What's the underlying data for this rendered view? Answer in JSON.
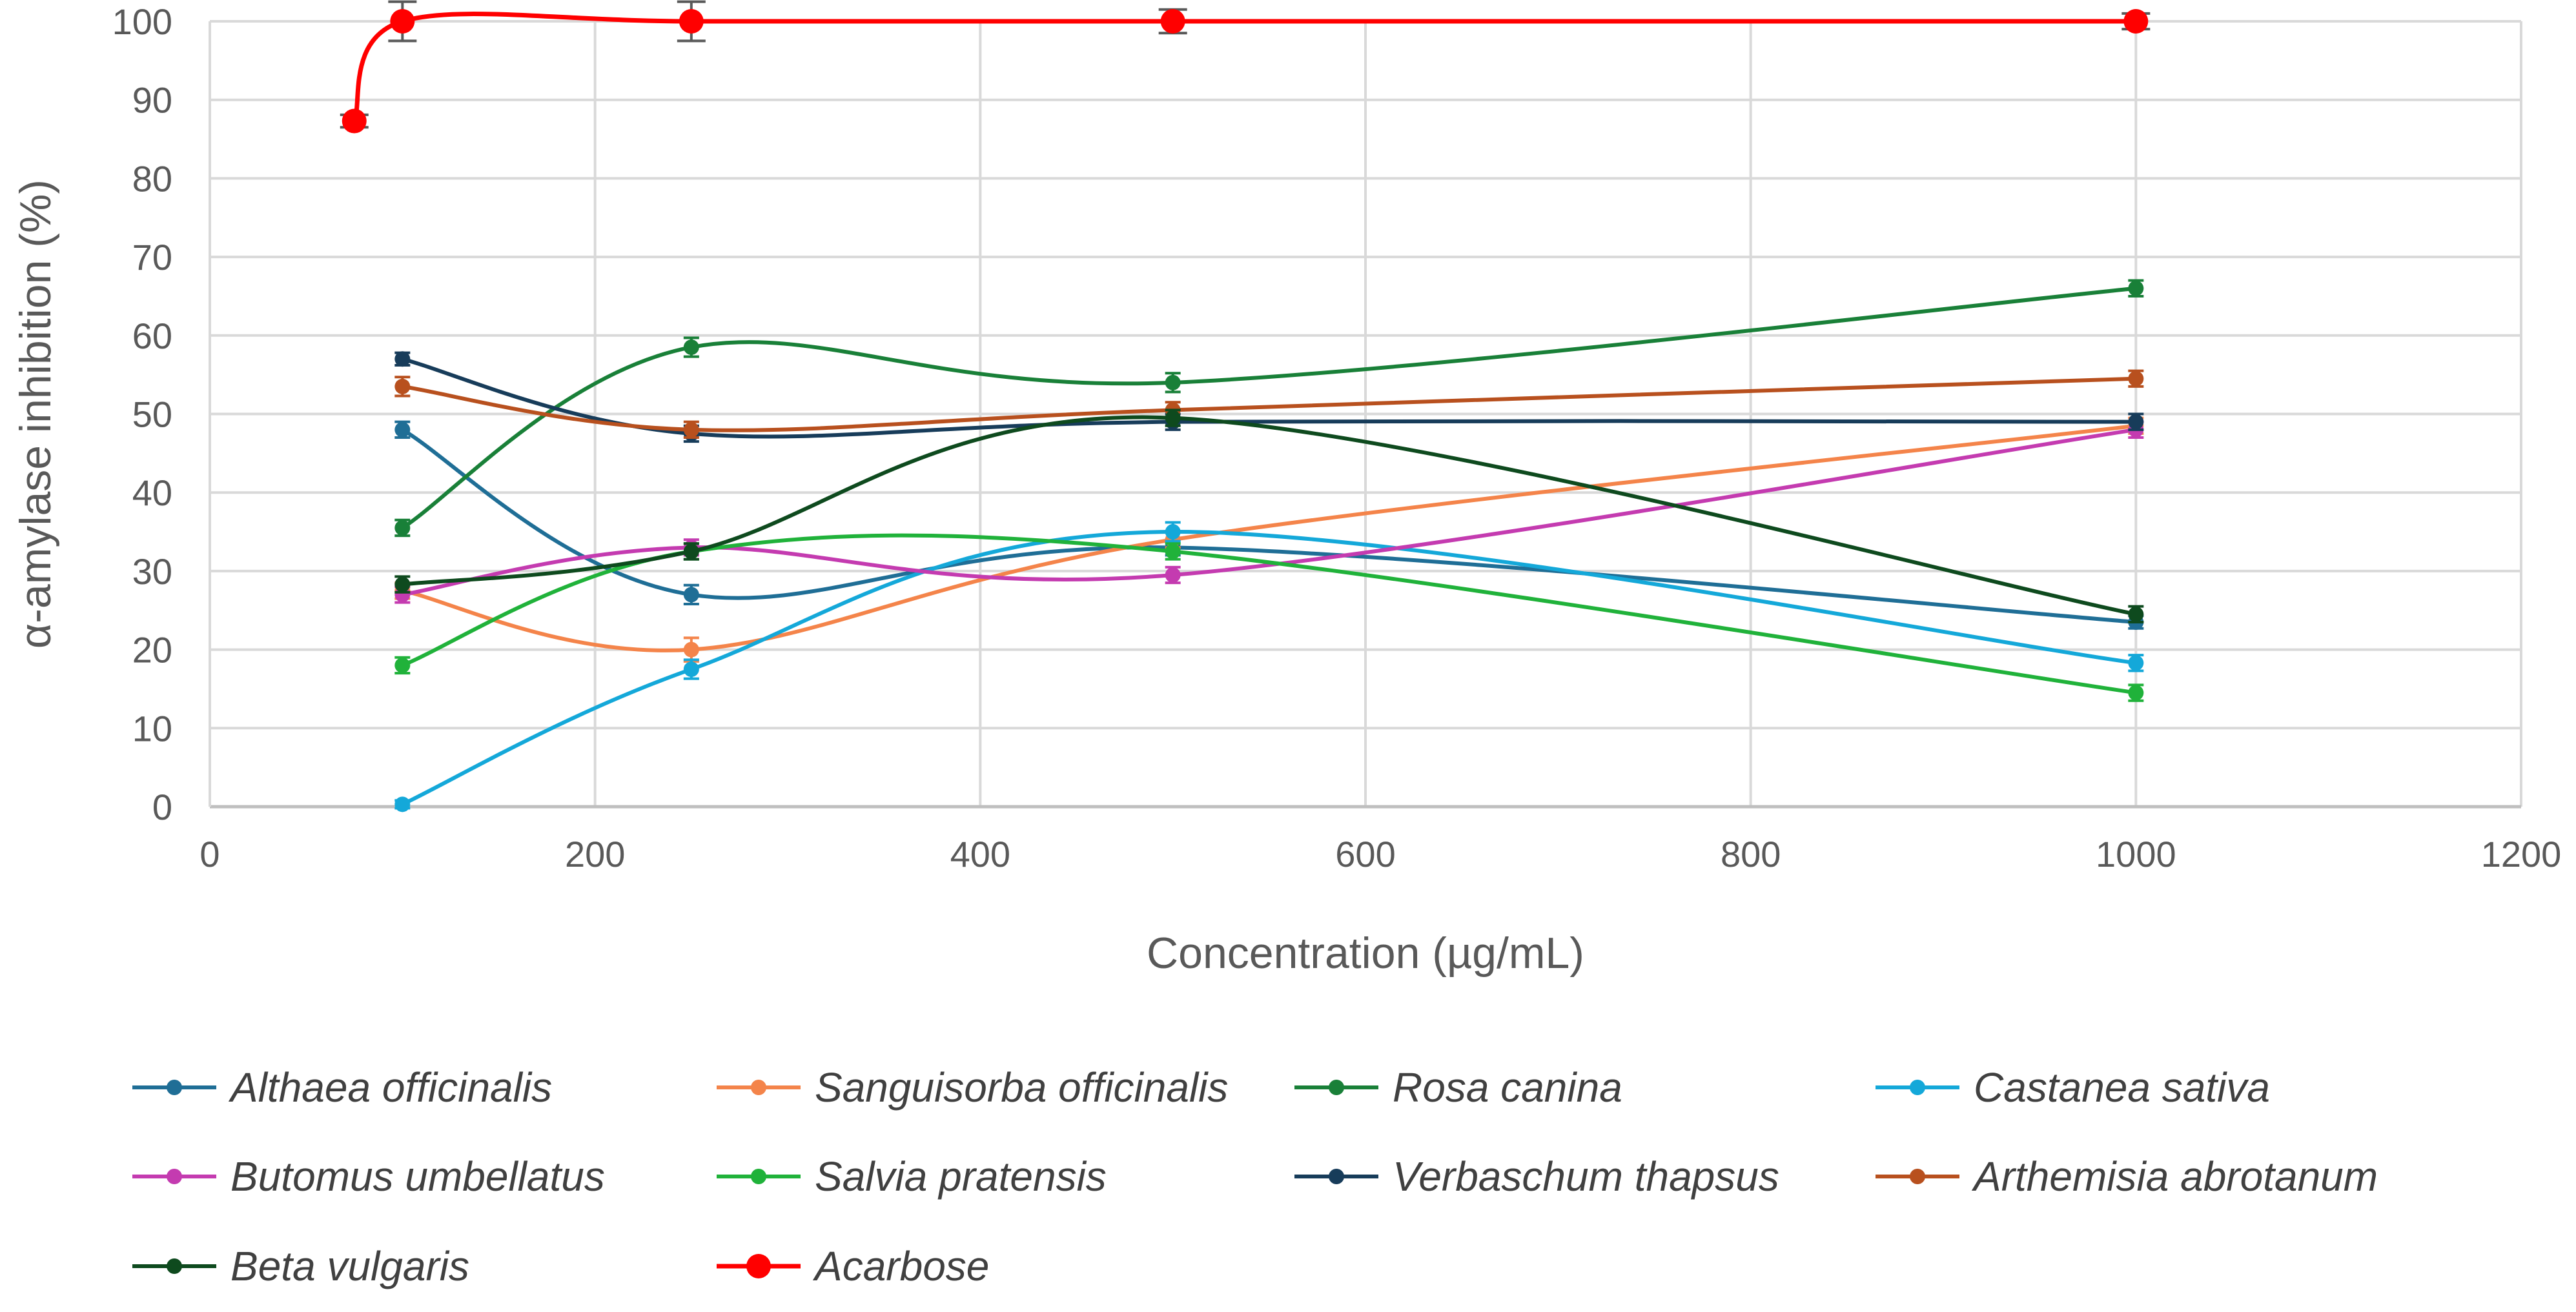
{
  "chart_data": {
    "type": "line",
    "title": "",
    "xlabel": "Concentration (µg/mL)",
    "ylabel": "α-amylase inhibition (%)",
    "xlim": [
      0,
      1200
    ],
    "ylim": [
      0,
      100
    ],
    "x_ticks": [
      "0",
      "200",
      "400",
      "600",
      "800",
      "1000",
      "1200"
    ],
    "y_ticks": [
      "0",
      "10",
      "20",
      "30",
      "40",
      "50",
      "60",
      "70",
      "80",
      "90",
      "100"
    ],
    "grid": true,
    "legend_position": "bottom",
    "series": [
      {
        "name": "Althaea officinalis",
        "color": "#1F6E96",
        "x": [
          100,
          250,
          500,
          1000
        ],
        "values": [
          48,
          27,
          33,
          23.5
        ],
        "errors": [
          1,
          1.2,
          1,
          0.8
        ]
      },
      {
        "name": "Sanguisorba officinalis",
        "color": "#F4844A",
        "x": [
          100,
          250,
          500,
          1000
        ],
        "values": [
          27.5,
          20,
          34,
          48.5
        ],
        "errors": [
          1,
          1.5,
          1,
          1
        ]
      },
      {
        "name": "Rosa canina",
        "color": "#198038",
        "x": [
          100,
          250,
          500,
          1000
        ],
        "values": [
          35.5,
          58.5,
          54,
          66
        ],
        "errors": [
          1,
          1.2,
          1.2,
          1
        ]
      },
      {
        "name": "Castanea sativa",
        "color": "#14A8D9",
        "x": [
          100,
          250,
          500,
          1000
        ],
        "values": [
          0.3,
          17.5,
          35,
          18.3
        ],
        "errors": [
          0.5,
          1.2,
          1.2,
          1
        ]
      },
      {
        "name": "Butomus umbellatus",
        "color": "#C43BB0",
        "x": [
          100,
          250,
          500,
          1000
        ],
        "values": [
          27,
          33,
          29.5,
          48
        ],
        "errors": [
          1,
          1,
          1,
          1
        ]
      },
      {
        "name": "Salvia pratensis",
        "color": "#20B23A",
        "x": [
          100,
          250,
          500,
          1000
        ],
        "values": [
          18,
          32.5,
          32.5,
          14.5
        ],
        "errors": [
          1,
          1,
          1,
          1
        ]
      },
      {
        "name": "Verbaschum thapsus",
        "color": "#173C5A",
        "x": [
          100,
          250,
          500,
          1000
        ],
        "values": [
          57,
          47.5,
          49,
          49
        ],
        "errors": [
          0.8,
          1,
          1,
          1
        ]
      },
      {
        "name": "Arthemisia abrotanum",
        "color": "#B8501E",
        "x": [
          100,
          250,
          500,
          1000
        ],
        "values": [
          53.5,
          48,
          50.5,
          54.5
        ],
        "errors": [
          1.2,
          1,
          1,
          1
        ]
      },
      {
        "name": "Beta vulgaris",
        "color": "#0E4A1E",
        "x": [
          100,
          250,
          500,
          1000
        ],
        "values": [
          28.3,
          32.5,
          49.5,
          24.5
        ],
        "errors": [
          1,
          1,
          1,
          1
        ]
      },
      {
        "name": "Acarbose",
        "color": "#FF0000",
        "x": [
          75,
          100,
          250,
          500,
          1000
        ],
        "values": [
          87.3,
          100,
          100,
          100,
          100
        ],
        "errors": [
          0.8,
          2.5,
          2.5,
          1.5,
          1
        ],
        "marker": "large"
      }
    ]
  }
}
